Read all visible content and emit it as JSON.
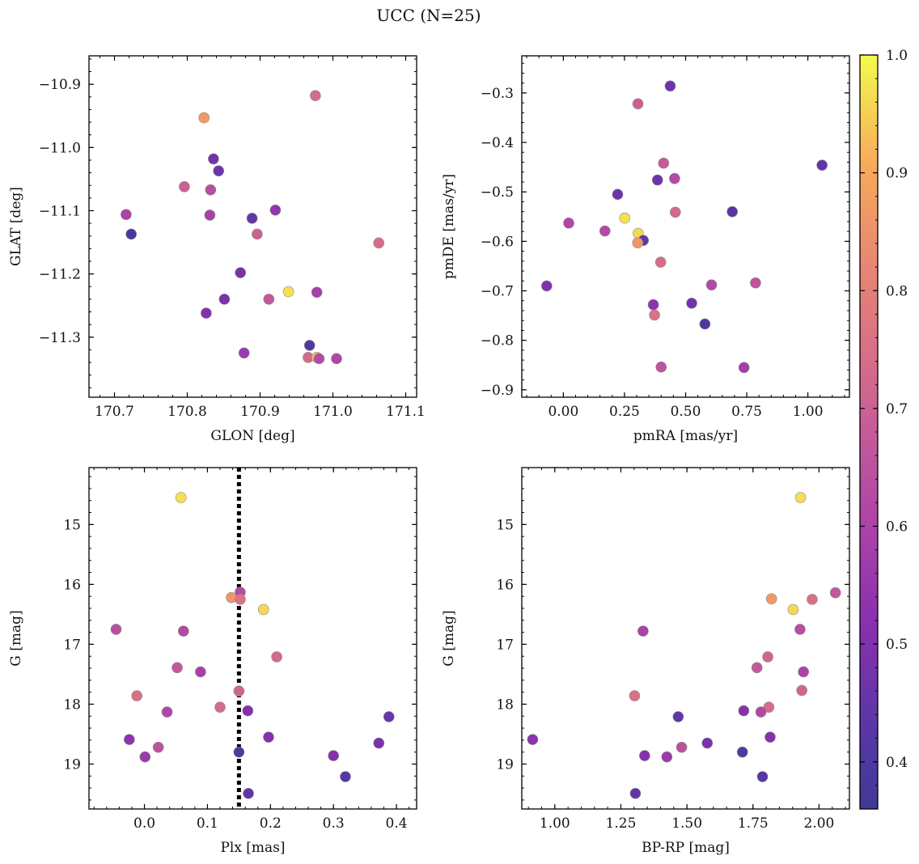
{
  "figure": {
    "title": "UCC (N=25)"
  },
  "colorbar": {
    "range": [
      0.36,
      1.0
    ],
    "ticks": [
      0.4,
      0.5,
      0.6,
      0.7,
      0.8,
      0.9,
      1.0
    ],
    "tick_labels": [
      "0.4",
      "0.5",
      "0.6",
      "0.7",
      "0.8",
      "0.9",
      "1.0"
    ],
    "colormap": "plasma"
  },
  "chart_data": [
    {
      "type": "scatter",
      "xlabel": "GLON [deg]",
      "ylabel": "GLAT [deg]",
      "xlim": [
        170.665,
        171.115
      ],
      "ylim": [
        -11.395,
        -10.855
      ],
      "y_inverted": false,
      "xticks": [
        170.7,
        170.8,
        170.9,
        171.0,
        171.1
      ],
      "xtick_labels": [
        "170.7",
        "170.8",
        "170.9",
        "171.0",
        "171.1"
      ],
      "yticks": [
        -10.9,
        -11.0,
        -11.1,
        -11.2,
        -11.3
      ],
      "ytick_labels": [
        "−10.9",
        "−11.0",
        "−11.1",
        "−11.2",
        "−11.3"
      ],
      "points": [
        {
          "x": 170.976,
          "y": -10.918,
          "c": 0.74
        },
        {
          "x": 170.823,
          "y": -10.953,
          "c": 0.87
        },
        {
          "x": 170.836,
          "y": -11.018,
          "c": 0.47
        },
        {
          "x": 170.843,
          "y": -11.037,
          "c": 0.46
        },
        {
          "x": 170.796,
          "y": -11.062,
          "c": 0.7
        },
        {
          "x": 170.832,
          "y": -11.067,
          "c": 0.64
        },
        {
          "x": 170.716,
          "y": -11.106,
          "c": 0.6
        },
        {
          "x": 170.831,
          "y": -11.107,
          "c": 0.59
        },
        {
          "x": 170.921,
          "y": -11.099,
          "c": 0.54
        },
        {
          "x": 170.889,
          "y": -11.112,
          "c": 0.44
        },
        {
          "x": 170.723,
          "y": -11.137,
          "c": 0.38
        },
        {
          "x": 170.896,
          "y": -11.137,
          "c": 0.7
        },
        {
          "x": 171.063,
          "y": -11.151,
          "c": 0.74
        },
        {
          "x": 170.873,
          "y": -11.198,
          "c": 0.48
        },
        {
          "x": 170.939,
          "y": -11.228,
          "c": 0.97
        },
        {
          "x": 170.978,
          "y": -11.229,
          "c": 0.59
        },
        {
          "x": 170.851,
          "y": -11.24,
          "c": 0.49
        },
        {
          "x": 170.912,
          "y": -11.24,
          "c": 0.67
        },
        {
          "x": 170.826,
          "y": -11.262,
          "c": 0.51
        },
        {
          "x": 170.968,
          "y": -11.313,
          "c": 0.41
        },
        {
          "x": 170.878,
          "y": -11.325,
          "c": 0.56
        },
        {
          "x": 170.966,
          "y": -11.332,
          "c": 0.73
        },
        {
          "x": 170.978,
          "y": -11.332,
          "c": 0.93
        },
        {
          "x": 170.981,
          "y": -11.334,
          "c": 0.63
        },
        {
          "x": 171.005,
          "y": -11.334,
          "c": 0.61
        }
      ]
    },
    {
      "type": "scatter",
      "xlabel": "pmRA [mas/yr]",
      "ylabel": "pmDE [mas/yr]",
      "xlim": [
        -0.17,
        1.17
      ],
      "ylim": [
        -0.915,
        -0.225
      ],
      "y_inverted": false,
      "xticks": [
        0.0,
        0.25,
        0.5,
        0.75,
        1.0
      ],
      "xtick_labels": [
        "0.00",
        "0.25",
        "0.50",
        "0.75",
        "1.00"
      ],
      "yticks": [
        -0.3,
        -0.4,
        -0.5,
        -0.6,
        -0.7,
        -0.8,
        -0.9
      ],
      "ytick_labels": [
        "−0.3",
        "−0.4",
        "−0.5",
        "−0.6",
        "−0.7",
        "−0.8",
        "−0.9"
      ],
      "points": [
        {
          "x": 0.437,
          "y": -0.286,
          "c": 0.47
        },
        {
          "x": 0.305,
          "y": -0.322,
          "c": 0.7
        },
        {
          "x": 1.058,
          "y": -0.446,
          "c": 0.44
        },
        {
          "x": 0.41,
          "y": -0.442,
          "c": 0.68
        },
        {
          "x": 0.455,
          "y": -0.473,
          "c": 0.62
        },
        {
          "x": 0.385,
          "y": -0.476,
          "c": 0.46
        },
        {
          "x": 0.222,
          "y": -0.505,
          "c": 0.47
        },
        {
          "x": 0.691,
          "y": -0.54,
          "c": 0.42
        },
        {
          "x": 0.458,
          "y": -0.541,
          "c": 0.73
        },
        {
          "x": 0.251,
          "y": -0.553,
          "c": 0.97
        },
        {
          "x": 0.022,
          "y": -0.563,
          "c": 0.61
        },
        {
          "x": 0.17,
          "y": -0.579,
          "c": 0.62
        },
        {
          "x": 0.306,
          "y": -0.584,
          "c": 0.96
        },
        {
          "x": 0.327,
          "y": -0.598,
          "c": 0.44
        },
        {
          "x": 0.304,
          "y": -0.603,
          "c": 0.86
        },
        {
          "x": 0.398,
          "y": -0.642,
          "c": 0.74
        },
        {
          "x": 0.786,
          "y": -0.684,
          "c": 0.66
        },
        {
          "x": 0.606,
          "y": -0.688,
          "c": 0.62
        },
        {
          "x": -0.068,
          "y": -0.69,
          "c": 0.5
        },
        {
          "x": 0.525,
          "y": -0.725,
          "c": 0.47
        },
        {
          "x": 0.368,
          "y": -0.728,
          "c": 0.53
        },
        {
          "x": 0.373,
          "y": -0.749,
          "c": 0.76
        },
        {
          "x": 0.579,
          "y": -0.767,
          "c": 0.41
        },
        {
          "x": 0.4,
          "y": -0.854,
          "c": 0.66
        },
        {
          "x": 0.739,
          "y": -0.855,
          "c": 0.58
        }
      ]
    },
    {
      "type": "scatter",
      "xlabel": "Plx [mas]",
      "ylabel": "G [mag]",
      "xlim": [
        -0.088,
        0.432
      ],
      "ylim": [
        19.75,
        14.05
      ],
      "y_inverted": true,
      "xticks": [
        0.0,
        0.1,
        0.2,
        0.3,
        0.4
      ],
      "xtick_labels": [
        "0.0",
        "0.1",
        "0.2",
        "0.3",
        "0.4"
      ],
      "yticks": [
        15,
        16,
        17,
        18,
        19
      ],
      "ytick_labels": [
        "15",
        "16",
        "17",
        "18",
        "19"
      ],
      "vline": {
        "x": 0.15,
        "style": "dotted",
        "color": "#000000"
      },
      "points": [
        {
          "x": 0.058,
          "y": 14.55,
          "c": 0.97
        },
        {
          "x": 0.152,
          "y": 16.13,
          "c": 0.63
        },
        {
          "x": 0.138,
          "y": 16.22,
          "c": 0.86
        },
        {
          "x": 0.152,
          "y": 16.25,
          "c": 0.76
        },
        {
          "x": 0.189,
          "y": 16.42,
          "c": 0.96
        },
        {
          "x": -0.045,
          "y": 16.75,
          "c": 0.64
        },
        {
          "x": 0.062,
          "y": 16.78,
          "c": 0.62
        },
        {
          "x": 0.21,
          "y": 17.21,
          "c": 0.73
        },
        {
          "x": 0.052,
          "y": 17.39,
          "c": 0.67
        },
        {
          "x": 0.089,
          "y": 17.46,
          "c": 0.59
        },
        {
          "x": 0.15,
          "y": 17.78,
          "c": 0.71
        },
        {
          "x": -0.012,
          "y": 17.86,
          "c": 0.75
        },
        {
          "x": 0.12,
          "y": 18.05,
          "c": 0.74
        },
        {
          "x": 0.164,
          "y": 18.11,
          "c": 0.51
        },
        {
          "x": 0.036,
          "y": 18.13,
          "c": 0.61
        },
        {
          "x": 0.388,
          "y": 18.21,
          "c": 0.45
        },
        {
          "x": 0.197,
          "y": 18.55,
          "c": 0.51
        },
        {
          "x": -0.024,
          "y": 18.59,
          "c": 0.53
        },
        {
          "x": 0.372,
          "y": 18.65,
          "c": 0.49
        },
        {
          "x": 0.022,
          "y": 18.72,
          "c": 0.65
        },
        {
          "x": 0.15,
          "y": 18.8,
          "c": 0.4
        },
        {
          "x": 0.3,
          "y": 18.86,
          "c": 0.51
        },
        {
          "x": 0.001,
          "y": 18.88,
          "c": 0.56
        },
        {
          "x": 0.319,
          "y": 19.21,
          "c": 0.42
        },
        {
          "x": 0.165,
          "y": 19.49,
          "c": 0.44
        }
      ]
    },
    {
      "type": "scatter",
      "xlabel": "BP-RP [mag]",
      "ylabel": "G [mag]",
      "xlim": [
        0.875,
        2.115
      ],
      "ylim": [
        19.75,
        14.05
      ],
      "y_inverted": true,
      "xticks": [
        1.0,
        1.25,
        1.5,
        1.75,
        2.0
      ],
      "xtick_labels": [
        "1.00",
        "1.25",
        "1.50",
        "1.75",
        "2.00"
      ],
      "yticks": [
        15,
        16,
        17,
        18,
        19
      ],
      "ytick_labels": [
        "15",
        "16",
        "17",
        "18",
        "19"
      ],
      "points": [
        {
          "x": 1.93,
          "y": 14.55,
          "c": 0.97
        },
        {
          "x": 2.062,
          "y": 16.14,
          "c": 0.67
        },
        {
          "x": 1.82,
          "y": 16.24,
          "c": 0.87
        },
        {
          "x": 1.974,
          "y": 16.25,
          "c": 0.75
        },
        {
          "x": 1.902,
          "y": 16.42,
          "c": 0.96
        },
        {
          "x": 1.334,
          "y": 16.78,
          "c": 0.6
        },
        {
          "x": 1.928,
          "y": 16.75,
          "c": 0.64
        },
        {
          "x": 1.806,
          "y": 17.21,
          "c": 0.72
        },
        {
          "x": 1.765,
          "y": 17.39,
          "c": 0.67
        },
        {
          "x": 1.941,
          "y": 17.46,
          "c": 0.6
        },
        {
          "x": 1.935,
          "y": 17.77,
          "c": 0.72
        },
        {
          "x": 1.302,
          "y": 17.86,
          "c": 0.75
        },
        {
          "x": 1.81,
          "y": 18.05,
          "c": 0.74
        },
        {
          "x": 1.715,
          "y": 18.11,
          "c": 0.51
        },
        {
          "x": 1.78,
          "y": 18.13,
          "c": 0.62
        },
        {
          "x": 1.467,
          "y": 18.21,
          "c": 0.44
        },
        {
          "x": 1.815,
          "y": 18.55,
          "c": 0.51
        },
        {
          "x": 0.916,
          "y": 18.59,
          "c": 0.53
        },
        {
          "x": 1.577,
          "y": 18.65,
          "c": 0.49
        },
        {
          "x": 1.48,
          "y": 18.72,
          "c": 0.65
        },
        {
          "x": 1.71,
          "y": 18.8,
          "c": 0.4
        },
        {
          "x": 1.34,
          "y": 18.86,
          "c": 0.51
        },
        {
          "x": 1.424,
          "y": 18.88,
          "c": 0.56
        },
        {
          "x": 1.786,
          "y": 19.21,
          "c": 0.42
        },
        {
          "x": 1.305,
          "y": 19.49,
          "c": 0.44
        }
      ]
    }
  ]
}
